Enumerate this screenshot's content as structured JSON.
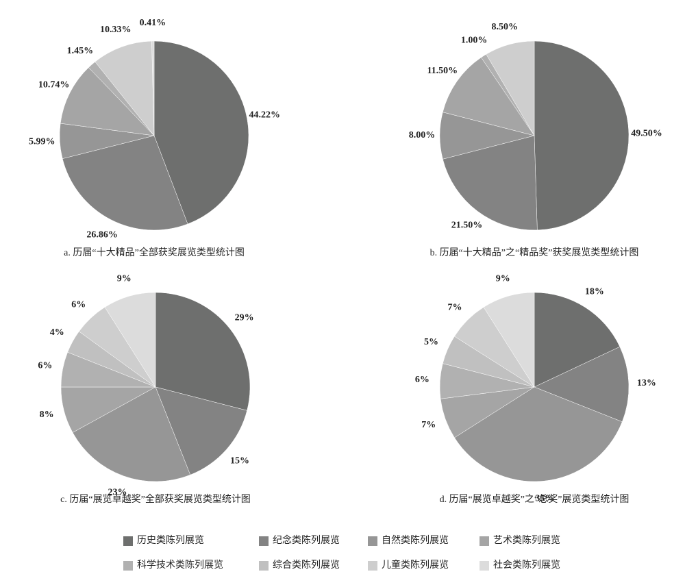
{
  "chart_data": [
    {
      "type": "pie",
      "title": "a. 历届“十大精品”全部获奖展览类型统计图",
      "values": [
        44.22,
        26.86,
        5.99,
        10.74,
        1.45,
        null,
        10.33,
        0.41
      ],
      "value_labels": [
        "44.22%",
        "26.86%",
        "5.99%",
        "10.74%",
        "1.45%",
        null,
        "10.33%",
        "0.41%"
      ]
    },
    {
      "type": "pie",
      "title": "b. 历届“十大精品”之“精品奖”获奖展览类型统计图",
      "values": [
        49.5,
        21.5,
        8.0,
        11.5,
        1.0,
        null,
        8.5,
        null
      ],
      "value_labels": [
        "49.50%",
        "21.50%",
        "8.00%",
        "11.50%",
        "1.00%",
        null,
        "8.50%",
        null
      ]
    },
    {
      "type": "pie",
      "title": "c. 历届“展览卓越奖”全部获奖展览类型统计图",
      "values": [
        29,
        15,
        23,
        8,
        6,
        4,
        6,
        9
      ],
      "value_labels": [
        "29%",
        "15%",
        "23%",
        "8%",
        "6%",
        "4%",
        "6%",
        "9%"
      ]
    },
    {
      "type": "pie",
      "title": "d. 历届“展览卓越奖”之“总奖”展览类型统计图",
      "values": [
        18,
        13,
        35,
        7,
        6,
        5,
        7,
        9
      ],
      "value_labels": [
        "18%",
        "13%",
        "35%",
        "7%",
        "6%",
        "5%",
        "7%",
        "9%"
      ]
    }
  ],
  "legend": {
    "categories": [
      "历史类陈列展览",
      "纪念类陈列展览",
      "自然类陈列展览",
      "艺术类陈列展览",
      "科学技术类陈列展览",
      "综合类陈列展览",
      "儿童类陈列展览",
      "社会类陈列展览"
    ],
    "colors": [
      "#6e6f6e",
      "#838383",
      "#969696",
      "#a5a5a5",
      "#b1b1b1",
      "#c0c0c0",
      "#cecece",
      "#dcdcdc"
    ]
  }
}
